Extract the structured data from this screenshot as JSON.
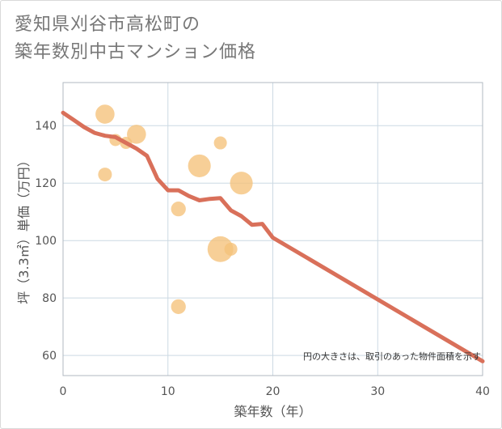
{
  "chart_data": {
    "type": "scatter",
    "title_line1": "愛知県刈谷市高松町の",
    "title_line2": "築年数別中古マンション価格",
    "xlabel": "築年数（年）",
    "ylabel": "坪（3.3㎡）単価（万円）",
    "xlim": [
      0,
      40
    ],
    "ylim": [
      53,
      155
    ],
    "x_ticks": [
      0,
      10,
      20,
      30,
      40
    ],
    "y_ticks": [
      60,
      80,
      100,
      120,
      140
    ],
    "note": "円の大きさは、取引のあった物件面積を示す",
    "colors": {
      "bubble": "#f5c27a",
      "line": "#d9705a",
      "grid": "#ccd9e3",
      "frame": "#b0b8c0"
    },
    "scatter_points": [
      {
        "x": 4,
        "y": 144,
        "size": 3
      },
      {
        "x": 4,
        "y": 123,
        "size": 1
      },
      {
        "x": 5,
        "y": 135,
        "size": 0.6
      },
      {
        "x": 6,
        "y": 134,
        "size": 0.6
      },
      {
        "x": 7,
        "y": 137,
        "size": 3
      },
      {
        "x": 11,
        "y": 111,
        "size": 1.3
      },
      {
        "x": 11,
        "y": 77,
        "size": 1.3
      },
      {
        "x": 13,
        "y": 126,
        "size": 5
      },
      {
        "x": 15,
        "y": 134,
        "size": 0.8
      },
      {
        "x": 15,
        "y": 97,
        "size": 7
      },
      {
        "x": 16,
        "y": 97,
        "size": 0.8
      },
      {
        "x": 17,
        "y": 120,
        "size": 5
      }
    ],
    "trend_line": [
      {
        "x": 0,
        "y": 144.5
      },
      {
        "x": 1,
        "y": 142
      },
      {
        "x": 2,
        "y": 139.5
      },
      {
        "x": 3,
        "y": 137.5
      },
      {
        "x": 4,
        "y": 136.5
      },
      {
        "x": 5,
        "y": 136
      },
      {
        "x": 6,
        "y": 134
      },
      {
        "x": 7,
        "y": 132
      },
      {
        "x": 8,
        "y": 129.5
      },
      {
        "x": 9,
        "y": 121.5
      },
      {
        "x": 10,
        "y": 117.5
      },
      {
        "x": 11,
        "y": 117.5
      },
      {
        "x": 12,
        "y": 115.5
      },
      {
        "x": 13,
        "y": 114
      },
      {
        "x": 14,
        "y": 114.5
      },
      {
        "x": 15,
        "y": 114.8
      },
      {
        "x": 16,
        "y": 110.5
      },
      {
        "x": 17,
        "y": 108.5
      },
      {
        "x": 18,
        "y": 105.5
      },
      {
        "x": 19,
        "y": 105.8
      },
      {
        "x": 20,
        "y": 101
      },
      {
        "x": 40,
        "y": 58
      }
    ]
  }
}
